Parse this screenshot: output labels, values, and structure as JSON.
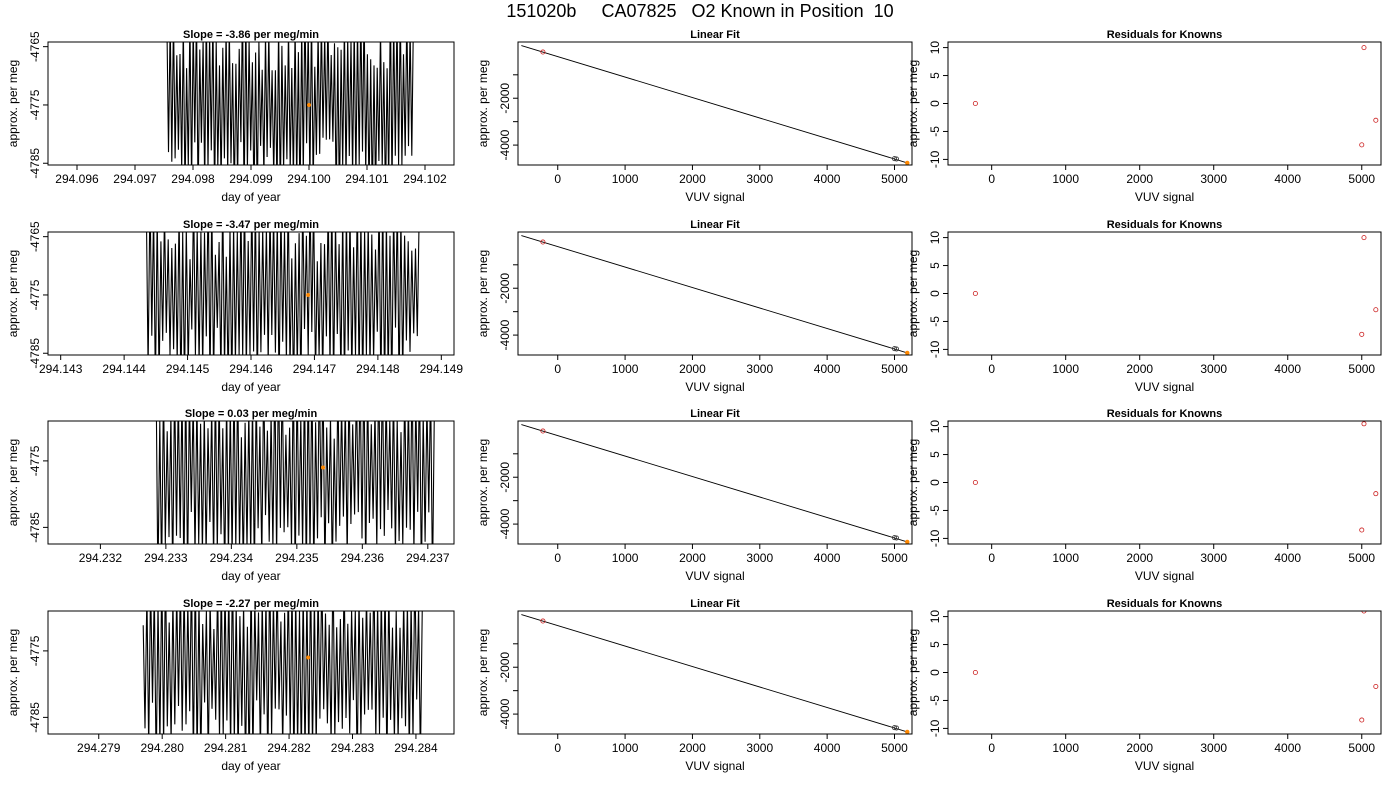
{
  "page_title": "151020b     CA07825   O2 Known in Position  10",
  "chart_data": [
    {
      "type": "line",
      "title": "Slope =  -3.86  per meg/min",
      "xlabel": "day of year",
      "ylabel": "approx. per meg",
      "xlim": [
        294.0955,
        294.1025
      ],
      "ylim": [
        -4785.3,
        -4764.2
      ],
      "xticks": [
        294.096,
        294.097,
        294.098,
        294.099,
        294.1,
        294.101,
        294.102
      ],
      "xtick_labels": [
        "294.096",
        "294.097",
        "294.098",
        "294.099",
        "294.100",
        "294.101",
        "294.102"
      ],
      "yticks": [
        -4765,
        -4775,
        -4785
      ],
      "ytick_labels": [
        "-4765",
        "-4775",
        "-4785"
      ],
      "x_start": 294.09755,
      "x_end": 294.1018,
      "y_center": -4775,
      "amplitude": 16,
      "highlight_point": {
        "x": 294.1,
        "y": -4775
      }
    },
    {
      "type": "scatter",
      "title": "Linear Fit",
      "xlabel": "VUV signal",
      "ylabel": "approx. per meg",
      "xlim": [
        -590,
        5260
      ],
      "ylim": [
        -4850,
        400
      ],
      "xticks": [
        0,
        1000,
        2000,
        3000,
        4000,
        5000
      ],
      "xtick_labels": [
        "0",
        "1000",
        "2000",
        "3000",
        "4000",
        "5000"
      ],
      "yticks": [
        -1000,
        -2000,
        -3000,
        -4000
      ],
      "ytick_labels": [
        "",
        "-2000",
        "",
        "-4000"
      ],
      "fit_line": {
        "x": [
          -540,
          5190
        ],
        "y": [
          250,
          -4760
        ]
      },
      "points": [
        {
          "x": -220,
          "y": -28
        },
        {
          "x": 5000,
          "y": -4580
        },
        {
          "x": 5030,
          "y": -4595
        }
      ],
      "highlight_points": [
        {
          "x": 5190,
          "y": -4760
        }
      ]
    },
    {
      "type": "scatter",
      "title": "Residuals for Knowns",
      "xlabel": "VUV signal",
      "ylabel": "approx. per meg",
      "xlim": [
        -590,
        5260
      ],
      "ylim": [
        -11,
        11
      ],
      "xticks": [
        0,
        1000,
        2000,
        3000,
        4000,
        5000
      ],
      "xtick_labels": [
        "0",
        "1000",
        "2000",
        "3000",
        "4000",
        "5000"
      ],
      "yticks": [
        10,
        5,
        0,
        -5,
        -10
      ],
      "ytick_labels": [
        "10",
        "5",
        "0",
        "-5",
        "-10"
      ],
      "points": [
        {
          "x": -220,
          "y": 0
        },
        {
          "x": 5030,
          "y": 10
        },
        {
          "x": 5190,
          "y": -3
        },
        {
          "x": 5000,
          "y": -7.4
        }
      ]
    },
    {
      "type": "line",
      "title": "Slope =  -3.47  per meg/min",
      "xlabel": "day of year",
      "ylabel": "approx. per meg",
      "xlim": [
        294.1428,
        294.1492
      ],
      "ylim": [
        -4785.3,
        -4764.2
      ],
      "xticks": [
        294.143,
        294.144,
        294.145,
        294.146,
        294.147,
        294.148,
        294.149
      ],
      "xtick_labels": [
        "294.143",
        "294.144",
        "294.145",
        "294.146",
        "294.147",
        "294.148",
        "294.149"
      ],
      "yticks": [
        -4765,
        -4775,
        -4785
      ],
      "ytick_labels": [
        "-4765",
        "-4775",
        "-4785"
      ],
      "x_start": 294.14435,
      "x_end": 294.14865,
      "y_center": -4775,
      "amplitude": 16,
      "highlight_point": {
        "x": 294.1469,
        "y": -4775
      }
    },
    {
      "type": "scatter",
      "title": "Linear Fit",
      "xlabel": "VUV signal",
      "ylabel": "approx. per meg",
      "xlim": [
        -590,
        5260
      ],
      "ylim": [
        -4850,
        400
      ],
      "xticks": [
        0,
        1000,
        2000,
        3000,
        4000,
        5000
      ],
      "xtick_labels": [
        "0",
        "1000",
        "2000",
        "3000",
        "4000",
        "5000"
      ],
      "yticks": [
        -1000,
        -2000,
        -3000,
        -4000
      ],
      "ytick_labels": [
        "",
        "-2000",
        "",
        "-4000"
      ],
      "fit_line": {
        "x": [
          -540,
          5190
        ],
        "y": [
          250,
          -4760
        ]
      },
      "points": [
        {
          "x": -220,
          "y": -28
        },
        {
          "x": 5000,
          "y": -4580
        },
        {
          "x": 5030,
          "y": -4595
        }
      ],
      "highlight_points": [
        {
          "x": 5190,
          "y": -4760
        }
      ]
    },
    {
      "type": "scatter",
      "title": "Residuals for Knowns",
      "xlabel": "VUV signal",
      "ylabel": "approx. per meg",
      "xlim": [
        -590,
        5260
      ],
      "ylim": [
        -11,
        11
      ],
      "xticks": [
        0,
        1000,
        2000,
        3000,
        4000,
        5000
      ],
      "xtick_labels": [
        "0",
        "1000",
        "2000",
        "3000",
        "4000",
        "5000"
      ],
      "yticks": [
        10,
        5,
        0,
        -5,
        -10
      ],
      "ytick_labels": [
        "10",
        "5",
        "0",
        "-5",
        "-10"
      ],
      "points": [
        {
          "x": -220,
          "y": 0
        },
        {
          "x": 5030,
          "y": 10
        },
        {
          "x": 5190,
          "y": -2.9
        },
        {
          "x": 5000,
          "y": -7.3
        }
      ]
    },
    {
      "type": "line",
      "title": "Slope =  0.03  per meg/min",
      "xlabel": "day of year",
      "ylabel": "approx. per meg",
      "xlim": [
        294.2312,
        294.2374
      ],
      "ylim": [
        -4787.5,
        -4769
      ],
      "xticks": [
        294.232,
        294.233,
        294.234,
        294.235,
        294.236,
        294.237
      ],
      "xtick_labels": [
        "294.232",
        "294.233",
        "294.234",
        "294.235",
        "294.236",
        "294.237"
      ],
      "yticks": [
        -4775,
        -4785
      ],
      "ytick_labels": [
        "-4775",
        "-4785"
      ],
      "x_start": 294.23285,
      "x_end": 294.2371,
      "y_center": -4777,
      "amplitude": 15,
      "highlight_point": {
        "x": 294.2354,
        "y": -4776
      }
    },
    {
      "type": "scatter",
      "title": "Linear Fit",
      "xlabel": "VUV signal",
      "ylabel": "approx. per meg",
      "xlim": [
        -590,
        5260
      ],
      "ylim": [
        -4850,
        400
      ],
      "xticks": [
        0,
        1000,
        2000,
        3000,
        4000,
        5000
      ],
      "xtick_labels": [
        "0",
        "1000",
        "2000",
        "3000",
        "4000",
        "5000"
      ],
      "yticks": [
        -1000,
        -2000,
        -3000,
        -4000
      ],
      "ytick_labels": [
        "",
        "-2000",
        "",
        "-4000"
      ],
      "fit_line": {
        "x": [
          -540,
          5190
        ],
        "y": [
          250,
          -4760
        ]
      },
      "points": [
        {
          "x": -220,
          "y": -28
        },
        {
          "x": 5000,
          "y": -4580
        },
        {
          "x": 5030,
          "y": -4595
        }
      ],
      "highlight_points": [
        {
          "x": 5190,
          "y": -4760
        }
      ]
    },
    {
      "type": "scatter",
      "title": "Residuals for Knowns",
      "xlabel": "VUV signal",
      "ylabel": "approx. per meg",
      "xlim": [
        -590,
        5260
      ],
      "ylim": [
        -11,
        11
      ],
      "xticks": [
        0,
        1000,
        2000,
        3000,
        4000,
        5000
      ],
      "xtick_labels": [
        "0",
        "1000",
        "2000",
        "3000",
        "4000",
        "5000"
      ],
      "yticks": [
        10,
        5,
        0,
        -5,
        -10
      ],
      "ytick_labels": [
        "10",
        "5",
        "0",
        "-5",
        "-10"
      ],
      "points": [
        {
          "x": -220,
          "y": 0
        },
        {
          "x": 5030,
          "y": 10.5
        },
        {
          "x": 5190,
          "y": -2
        },
        {
          "x": 5000,
          "y": -8.5
        }
      ]
    },
    {
      "type": "line",
      "title": "Slope =  -2.27  per meg/min",
      "xlabel": "day of year",
      "ylabel": "approx. per meg",
      "xlim": [
        294.2782,
        294.2846
      ],
      "ylim": [
        -4787.5,
        -4769
      ],
      "xticks": [
        294.279,
        294.28,
        294.281,
        294.282,
        294.283,
        294.284
      ],
      "xtick_labels": [
        "294.279",
        "294.280",
        "294.281",
        "294.282",
        "294.283",
        "294.284"
      ],
      "yticks": [
        -4775,
        -4785
      ],
      "ytick_labels": [
        "-4775",
        "-4785"
      ],
      "x_start": 294.2797,
      "x_end": 294.2841,
      "y_center": -4777,
      "amplitude": 15,
      "highlight_point": {
        "x": 294.2823,
        "y": -4776
      }
    },
    {
      "type": "scatter",
      "title": "Linear Fit",
      "xlabel": "VUV signal",
      "ylabel": "approx. per meg",
      "xlim": [
        -590,
        5260
      ],
      "ylim": [
        -4850,
        400
      ],
      "xticks": [
        0,
        1000,
        2000,
        3000,
        4000,
        5000
      ],
      "xtick_labels": [
        "0",
        "1000",
        "2000",
        "3000",
        "4000",
        "5000"
      ],
      "yticks": [
        -1000,
        -2000,
        -3000,
        -4000
      ],
      "ytick_labels": [
        "",
        "-2000",
        "",
        "-4000"
      ],
      "fit_line": {
        "x": [
          -540,
          5190
        ],
        "y": [
          250,
          -4760
        ]
      },
      "points": [
        {
          "x": -220,
          "y": -28
        },
        {
          "x": 5000,
          "y": -4580
        },
        {
          "x": 5030,
          "y": -4595
        }
      ],
      "highlight_points": [
        {
          "x": 5190,
          "y": -4760
        }
      ]
    },
    {
      "type": "scatter",
      "title": "Residuals for Knowns",
      "xlabel": "VUV signal",
      "ylabel": "approx. per meg",
      "xlim": [
        -590,
        5260
      ],
      "ylim": [
        -11,
        11
      ],
      "xticks": [
        0,
        1000,
        2000,
        3000,
        4000,
        5000
      ],
      "xtick_labels": [
        "0",
        "1000",
        "2000",
        "3000",
        "4000",
        "5000"
      ],
      "yticks": [
        10,
        5,
        0,
        -5,
        -10
      ],
      "ytick_labels": [
        "10",
        "5",
        "0",
        "-5",
        "-10"
      ],
      "points": [
        {
          "x": -220,
          "y": 0
        },
        {
          "x": 5030,
          "y": 11
        },
        {
          "x": 5190,
          "y": -2.5
        },
        {
          "x": 5000,
          "y": -8.5
        }
      ]
    }
  ],
  "colors": {
    "axes": "#000000",
    "line": "#000000",
    "point": "#cc2222",
    "highlight": "#ff8800",
    "fit_point": "#333333"
  }
}
